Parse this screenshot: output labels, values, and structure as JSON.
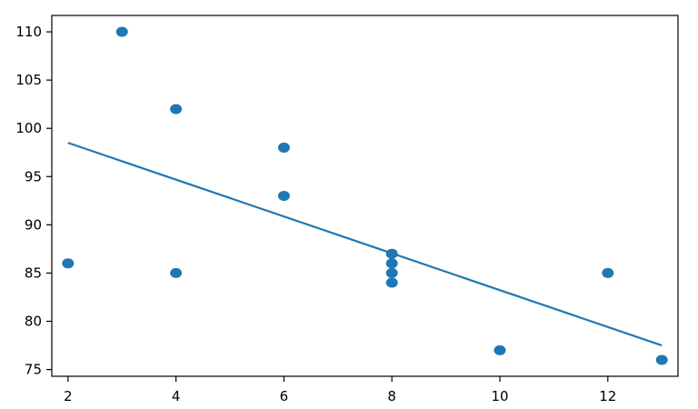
{
  "chart_data": {
    "type": "scatter",
    "title": "",
    "xlabel": "",
    "ylabel": "",
    "xlim": [
      1.7,
      13.3
    ],
    "ylim": [
      74.3,
      111.7
    ],
    "xticks": [
      2,
      4,
      6,
      8,
      10,
      12
    ],
    "yticks": [
      75,
      80,
      85,
      90,
      95,
      100,
      105,
      110
    ],
    "grid": false,
    "series": [
      {
        "type": "scatter",
        "color": "#1f77b4",
        "x": [
          2,
          3,
          4,
          4,
          6,
          6,
          8,
          8,
          8,
          8,
          10,
          12,
          13
        ],
        "y": [
          86,
          110,
          102,
          85,
          98,
          93,
          87,
          86,
          85,
          84,
          77,
          85,
          76
        ]
      },
      {
        "type": "line",
        "color": "#1f77b4",
        "x": [
          2,
          13
        ],
        "y": [
          98.5,
          77.5
        ]
      }
    ]
  }
}
